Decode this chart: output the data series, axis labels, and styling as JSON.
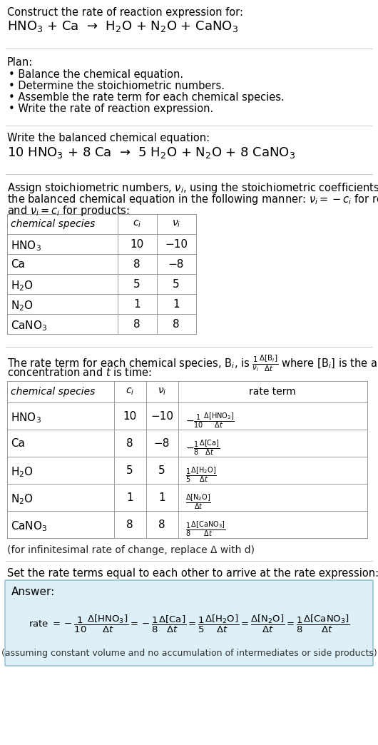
{
  "title_line1": "Construct the rate of reaction expression for:",
  "title_line2": "HNO$_3$ + Ca  →  H$_2$O + N$_2$O + CaNO$_3$",
  "plan_header": "Plan:",
  "plan_items": [
    "• Balance the chemical equation.",
    "• Determine the stoichiometric numbers.",
    "• Assemble the rate term for each chemical species.",
    "• Write the rate of reaction expression."
  ],
  "balanced_header": "Write the balanced chemical equation:",
  "balanced_eq": "10 HNO$_3$ + 8 Ca  →  5 H$_2$O + N$_2$O + 8 CaNO$_3$",
  "assign_text1": "Assign stoichiometric numbers, $\\nu_i$, using the stoichiometric coefficients, $c_i$, from",
  "assign_text2": "the balanced chemical equation in the following manner: $\\nu_i = -c_i$ for reactants",
  "assign_text3": "and $\\nu_i = c_i$ for products:",
  "table1_headers": [
    "chemical species",
    "$c_i$",
    "$\\nu_i$"
  ],
  "table1_data": [
    [
      "HNO$_3$",
      "10",
      "−10"
    ],
    [
      "Ca",
      "8",
      "−8"
    ],
    [
      "H$_2$O",
      "5",
      "5"
    ],
    [
      "N$_2$O",
      "1",
      "1"
    ],
    [
      "CaNO$_3$",
      "8",
      "8"
    ]
  ],
  "rate_text1": "The rate term for each chemical species, B$_i$, is $\\frac{1}{\\nu_i}\\frac{\\Delta[\\mathrm{B}_i]}{\\Delta t}$ where [B$_i$] is the amount",
  "rate_text2": "concentration and $t$ is time:",
  "table2_headers": [
    "chemical species",
    "$c_i$",
    "$\\nu_i$",
    "rate term"
  ],
  "table2_data": [
    [
      "HNO$_3$",
      "10",
      "−10",
      "$-\\frac{1}{10}\\frac{\\Delta[\\mathrm{HNO_3}]}{\\Delta t}$"
    ],
    [
      "Ca",
      "8",
      "−8",
      "$-\\frac{1}{8}\\frac{\\Delta[\\mathrm{Ca}]}{\\Delta t}$"
    ],
    [
      "H$_2$O",
      "5",
      "5",
      "$\\frac{1}{5}\\frac{\\Delta[\\mathrm{H_2O}]}{\\Delta t}$"
    ],
    [
      "N$_2$O",
      "1",
      "1",
      "$\\frac{\\Delta[\\mathrm{N_2O}]}{\\Delta t}$"
    ],
    [
      "CaNO$_3$",
      "8",
      "8",
      "$\\frac{1}{8}\\frac{\\Delta[\\mathrm{CaNO_3}]}{\\Delta t}$"
    ]
  ],
  "infinitesimal_note": "(for infinitesimal rate of change, replace Δ with d)",
  "set_rate_text": "Set the rate terms equal to each other to arrive at the rate expression:",
  "answer_label": "Answer:",
  "answer_box_color": "#ddf0f8",
  "answer_box_edge": "#88bbcc",
  "bg_color": "#ffffff",
  "text_color": "#000000",
  "table_border_color": "#999999",
  "separator_color": "#cccccc",
  "assuming_note": "(assuming constant volume and no accumulation of intermediates or side products)"
}
